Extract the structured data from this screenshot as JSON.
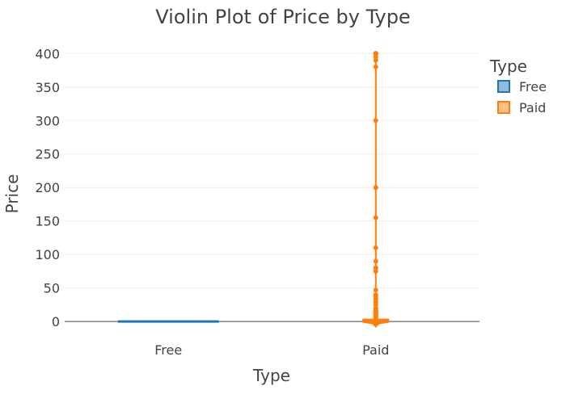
{
  "chart_data": {
    "type": "violin",
    "title": "Violin Plot of Price by Type",
    "xlabel": "Type",
    "ylabel": "Price",
    "categories": [
      "Free",
      "Paid"
    ],
    "ylim": [
      -30,
      410
    ],
    "yticks": [
      0,
      50,
      100,
      150,
      200,
      250,
      300,
      350,
      400
    ],
    "grid": true,
    "legend": {
      "title": "Type",
      "placement": "top-right"
    },
    "series": [
      {
        "name": "Free",
        "color": "#1f77b4",
        "points": [
          0
        ],
        "range": [
          0,
          0
        ]
      },
      {
        "name": "Paid",
        "color": "#ff7f0e",
        "range": [
          0,
          400
        ],
        "points": [
          400,
          399.99,
          399.99,
          399.99,
          399.99,
          399.99,
          394.99,
          389.99,
          379.99,
          299.99,
          200,
          154.99,
          109.99,
          89.99,
          79.99,
          79.99,
          74.99,
          46.99,
          39.99,
          37.99,
          33.99,
          29.99,
          28.99,
          24.99,
          19.99,
          18.99,
          16.99,
          15.99,
          14.99,
          13.99,
          12.99,
          11.99,
          10.99,
          9.99,
          8.99,
          7.99,
          6.99,
          5.99,
          4.99,
          3.99,
          2.99,
          1.99,
          0.99
        ]
      }
    ]
  }
}
